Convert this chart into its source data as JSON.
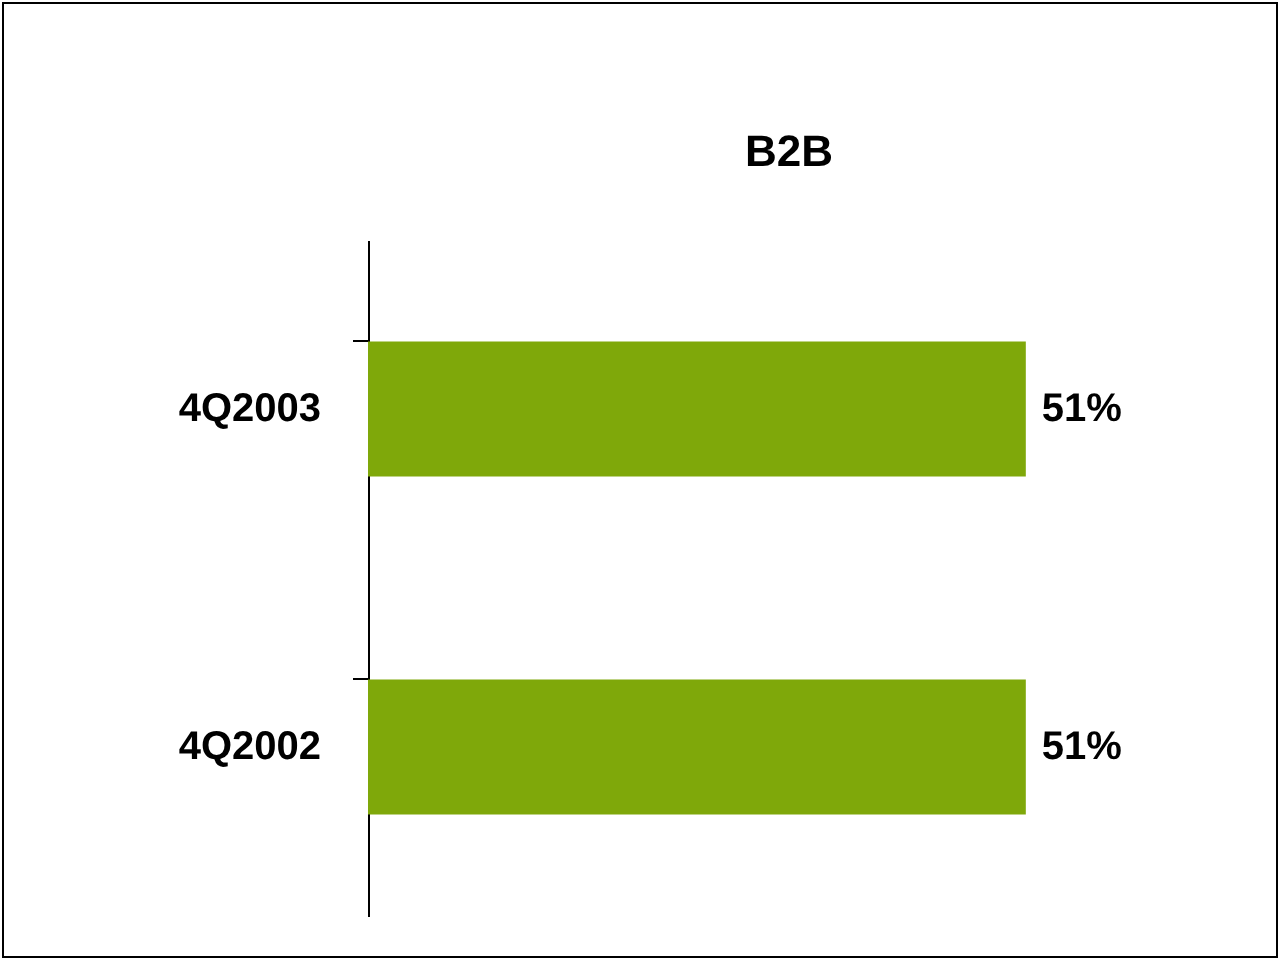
{
  "chart_data": {
    "type": "bar",
    "orientation": "horizontal",
    "title": "B2B",
    "categories": [
      "4Q2003",
      "4Q2002"
    ],
    "values": [
      51,
      51
    ],
    "colors": [
      "#7fa80a",
      "#7fa80a"
    ],
    "value_labels": [
      "51%",
      "51%"
    ]
  }
}
